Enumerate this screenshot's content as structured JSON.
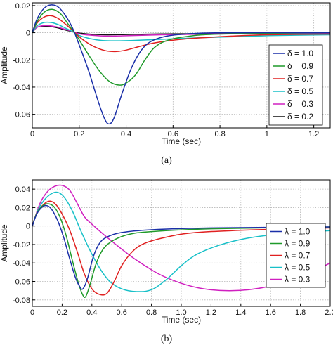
{
  "chart_data": [
    {
      "type": "line",
      "caption": "(a)",
      "xlabel": "Time (sec)",
      "ylabel": "Amplitude",
      "xlim": [
        0,
        1.27
      ],
      "ylim": [
        -0.07,
        0.022
      ],
      "xticks": [
        0,
        0.2,
        0.4,
        0.6,
        0.8,
        1,
        1.2
      ],
      "xtick_labels": [
        "0",
        "0.2",
        "0.4",
        "0.6",
        "0.8",
        "1",
        "1.2"
      ],
      "yticks": [
        0.02,
        0,
        -0.02,
        -0.04,
        -0.06
      ],
      "ytick_labels": [
        "0.02",
        "0",
        "-0.02",
        "-0.04",
        "-0.06"
      ],
      "grid": true,
      "legend_position": "right",
      "series": [
        {
          "name": "δ = 1.0",
          "color": "#1a2fa8",
          "points": [
            [
              0,
              0
            ],
            [
              0.02,
              0.01
            ],
            [
              0.05,
              0.018
            ],
            [
              0.08,
              0.0205
            ],
            [
              0.11,
              0.019
            ],
            [
              0.14,
              0.013
            ],
            [
              0.17,
              0.004
            ],
            [
              0.2,
              -0.009
            ],
            [
              0.24,
              -0.028
            ],
            [
              0.28,
              -0.05
            ],
            [
              0.31,
              -0.064
            ],
            [
              0.33,
              -0.067
            ],
            [
              0.35,
              -0.062
            ],
            [
              0.38,
              -0.046
            ],
            [
              0.42,
              -0.027
            ],
            [
              0.46,
              -0.014
            ],
            [
              0.5,
              -0.007
            ],
            [
              0.56,
              -0.003
            ],
            [
              0.65,
              -0.001
            ],
            [
              0.8,
              0
            ],
            [
              1.27,
              0
            ]
          ]
        },
        {
          "name": "δ = 0.9",
          "color": "#1f9a2a",
          "points": [
            [
              0,
              0
            ],
            [
              0.02,
              0.008
            ],
            [
              0.05,
              0.015
            ],
            [
              0.085,
              0.0172
            ],
            [
              0.12,
              0.014
            ],
            [
              0.15,
              0.007
            ],
            [
              0.18,
              0
            ],
            [
              0.21,
              -0.008
            ],
            [
              0.25,
              -0.019
            ],
            [
              0.29,
              -0.029
            ],
            [
              0.33,
              -0.036
            ],
            [
              0.37,
              -0.0385
            ],
            [
              0.4,
              -0.037
            ],
            [
              0.44,
              -0.031
            ],
            [
              0.48,
              -0.02
            ],
            [
              0.52,
              -0.011
            ],
            [
              0.57,
              -0.006
            ],
            [
              0.65,
              -0.003
            ],
            [
              0.8,
              -0.001
            ],
            [
              1.27,
              0
            ]
          ]
        },
        {
          "name": "δ = 0.7",
          "color": "#e02020",
          "points": [
            [
              0,
              0
            ],
            [
              0.02,
              0.007
            ],
            [
              0.05,
              0.0115
            ],
            [
              0.08,
              0.0125
            ],
            [
              0.11,
              0.0105
            ],
            [
              0.14,
              0.0065
            ],
            [
              0.17,
              0.002
            ],
            [
              0.2,
              -0.003
            ],
            [
              0.24,
              -0.008
            ],
            [
              0.28,
              -0.0115
            ],
            [
              0.32,
              -0.0135
            ],
            [
              0.36,
              -0.0138
            ],
            [
              0.4,
              -0.0128
            ],
            [
              0.46,
              -0.01
            ],
            [
              0.52,
              -0.0075
            ],
            [
              0.6,
              -0.0055
            ],
            [
              0.7,
              -0.004
            ],
            [
              0.85,
              -0.0025
            ],
            [
              1,
              -0.0015
            ],
            [
              1.27,
              -0.001
            ]
          ]
        },
        {
          "name": "δ = 0.5",
          "color": "#18c0c8",
          "points": [
            [
              0,
              0
            ],
            [
              0.02,
              0.005
            ],
            [
              0.05,
              0.0075
            ],
            [
              0.08,
              0.0075
            ],
            [
              0.11,
              0.006
            ],
            [
              0.14,
              0.0035
            ],
            [
              0.17,
              0.001
            ],
            [
              0.2,
              -0.002
            ],
            [
              0.25,
              -0.0045
            ],
            [
              0.3,
              -0.0058
            ],
            [
              0.36,
              -0.006
            ],
            [
              0.42,
              -0.0058
            ],
            [
              0.5,
              -0.0052
            ],
            [
              0.6,
              -0.0045
            ],
            [
              0.7,
              -0.0038
            ],
            [
              0.85,
              -0.003
            ],
            [
              1,
              -0.0022
            ],
            [
              1.27,
              -0.0015
            ]
          ]
        },
        {
          "name": "δ = 0.3",
          "color": "#d020c0",
          "points": [
            [
              0,
              0
            ],
            [
              0.02,
              0.004
            ],
            [
              0.05,
              0.0052
            ],
            [
              0.08,
              0.005
            ],
            [
              0.11,
              0.004
            ],
            [
              0.14,
              0.0025
            ],
            [
              0.17,
              0.001
            ],
            [
              0.2,
              -0.0008
            ],
            [
              0.26,
              -0.002
            ],
            [
              0.32,
              -0.0025
            ],
            [
              0.4,
              -0.0022
            ],
            [
              0.55,
              -0.0015
            ],
            [
              0.75,
              -0.001
            ],
            [
              1,
              -0.0006
            ],
            [
              1.27,
              -0.0004
            ]
          ]
        },
        {
          "name": "δ = 0.2",
          "color": "#111111",
          "points": [
            [
              0,
              0
            ],
            [
              0.02,
              0.004
            ],
            [
              0.05,
              0.0048
            ],
            [
              0.08,
              0.0045
            ],
            [
              0.11,
              0.0035
            ],
            [
              0.14,
              0.002
            ],
            [
              0.17,
              0.0008
            ],
            [
              0.2,
              -0.0003
            ],
            [
              0.26,
              -0.0012
            ],
            [
              0.32,
              -0.0015
            ],
            [
              0.4,
              -0.0013
            ],
            [
              0.55,
              -0.0009
            ],
            [
              0.75,
              -0.0006
            ],
            [
              1,
              -0.0004
            ],
            [
              1.27,
              -0.0003
            ]
          ]
        }
      ]
    },
    {
      "type": "line",
      "caption": "(b)",
      "xlabel": "Time (sec)",
      "ylabel": "Amplitude",
      "xlim": [
        0,
        2.0
      ],
      "ylim": [
        -0.087,
        0.05
      ],
      "xticks": [
        0,
        0.2,
        0.4,
        0.6,
        0.8,
        1.0,
        1.2,
        1.4,
        1.6,
        1.8,
        2.0
      ],
      "xtick_labels": [
        "0",
        "0.2",
        "0.4",
        "0.6",
        "0.8",
        "1.0",
        "1.2",
        "1.4",
        "1.6",
        "1.8",
        "2.0"
      ],
      "yticks": [
        0.04,
        0.02,
        0,
        -0.02,
        -0.04,
        -0.06,
        -0.08
      ],
      "ytick_labels": [
        "0.04",
        "0.02",
        "0",
        "-0.02",
        "-0.04",
        "-0.06",
        "-0.08"
      ],
      "grid": true,
      "legend_position": "right",
      "series": [
        {
          "name": "λ = 1.0",
          "color": "#1a2fa8",
          "points": [
            [
              0,
              0
            ],
            [
              0.03,
              0.013
            ],
            [
              0.07,
              0.021
            ],
            [
              0.1,
              0.022
            ],
            [
              0.13,
              0.018
            ],
            [
              0.17,
              0.006
            ],
            [
              0.21,
              -0.012
            ],
            [
              0.25,
              -0.035
            ],
            [
              0.29,
              -0.056
            ],
            [
              0.32,
              -0.066
            ],
            [
              0.34,
              -0.068
            ],
            [
              0.37,
              -0.057
            ],
            [
              0.41,
              -0.033
            ],
            [
              0.45,
              -0.019
            ],
            [
              0.5,
              -0.012
            ],
            [
              0.6,
              -0.007
            ],
            [
              0.8,
              -0.004
            ],
            [
              1.2,
              -0.002
            ],
            [
              2,
              -0.001
            ]
          ]
        },
        {
          "name": "λ = 0.9",
          "color": "#1f9a2a",
          "points": [
            [
              0,
              0
            ],
            [
              0.03,
              0.014
            ],
            [
              0.07,
              0.022
            ],
            [
              0.11,
              0.024
            ],
            [
              0.15,
              0.02
            ],
            [
              0.19,
              0.008
            ],
            [
              0.23,
              -0.012
            ],
            [
              0.27,
              -0.038
            ],
            [
              0.31,
              -0.062
            ],
            [
              0.34,
              -0.075
            ],
            [
              0.36,
              -0.076
            ],
            [
              0.39,
              -0.062
            ],
            [
              0.43,
              -0.04
            ],
            [
              0.48,
              -0.024
            ],
            [
              0.55,
              -0.015
            ],
            [
              0.65,
              -0.009
            ],
            [
              0.8,
              -0.006
            ],
            [
              1.2,
              -0.003
            ],
            [
              2,
              -0.001
            ]
          ]
        },
        {
          "name": "λ = 0.7",
          "color": "#e02020",
          "points": [
            [
              0,
              0
            ],
            [
              0.03,
              0.014
            ],
            [
              0.08,
              0.024
            ],
            [
              0.12,
              0.027
            ],
            [
              0.16,
              0.023
            ],
            [
              0.2,
              0.013
            ],
            [
              0.25,
              -0.004
            ],
            [
              0.3,
              -0.027
            ],
            [
              0.35,
              -0.052
            ],
            [
              0.4,
              -0.068
            ],
            [
              0.45,
              -0.074
            ],
            [
              0.5,
              -0.073
            ],
            [
              0.55,
              -0.06
            ],
            [
              0.6,
              -0.043
            ],
            [
              0.67,
              -0.028
            ],
            [
              0.75,
              -0.019
            ],
            [
              0.9,
              -0.012
            ],
            [
              1.1,
              -0.007
            ],
            [
              1.5,
              -0.004
            ],
            [
              2,
              -0.002
            ]
          ]
        },
        {
          "name": "λ = 0.5",
          "color": "#18c0c8",
          "points": [
            [
              0,
              0
            ],
            [
              0.04,
              0.018
            ],
            [
              0.09,
              0.03
            ],
            [
              0.14,
              0.036
            ],
            [
              0.18,
              0.036
            ],
            [
              0.22,
              0.03
            ],
            [
              0.27,
              0.016
            ],
            [
              0.32,
              -0.003
            ],
            [
              0.38,
              -0.024
            ],
            [
              0.45,
              -0.045
            ],
            [
              0.52,
              -0.06
            ],
            [
              0.6,
              -0.068
            ],
            [
              0.7,
              -0.071
            ],
            [
              0.8,
              -0.069
            ],
            [
              0.9,
              -0.058
            ],
            [
              1.0,
              -0.043
            ],
            [
              1.1,
              -0.031
            ],
            [
              1.25,
              -0.021
            ],
            [
              1.45,
              -0.013
            ],
            [
              1.7,
              -0.008
            ],
            [
              2,
              -0.005
            ]
          ]
        },
        {
          "name": "λ = 0.3",
          "color": "#d020c0",
          "points": [
            [
              0,
              0
            ],
            [
              0.05,
              0.024
            ],
            [
              0.1,
              0.037
            ],
            [
              0.15,
              0.043
            ],
            [
              0.2,
              0.044
            ],
            [
              0.25,
              0.039
            ],
            [
              0.3,
              0.025
            ],
            [
              0.35,
              0.01
            ],
            [
              0.4,
              0.002
            ],
            [
              0.5,
              -0.012
            ],
            [
              0.6,
              -0.025
            ],
            [
              0.7,
              -0.037
            ],
            [
              0.85,
              -0.052
            ],
            [
              1.0,
              -0.062
            ],
            [
              1.15,
              -0.068
            ],
            [
              1.3,
              -0.07
            ],
            [
              1.45,
              -0.069
            ],
            [
              1.6,
              -0.065
            ],
            [
              1.75,
              -0.058
            ],
            [
              1.9,
              -0.048
            ],
            [
              2,
              -0.04
            ]
          ]
        }
      ]
    }
  ]
}
